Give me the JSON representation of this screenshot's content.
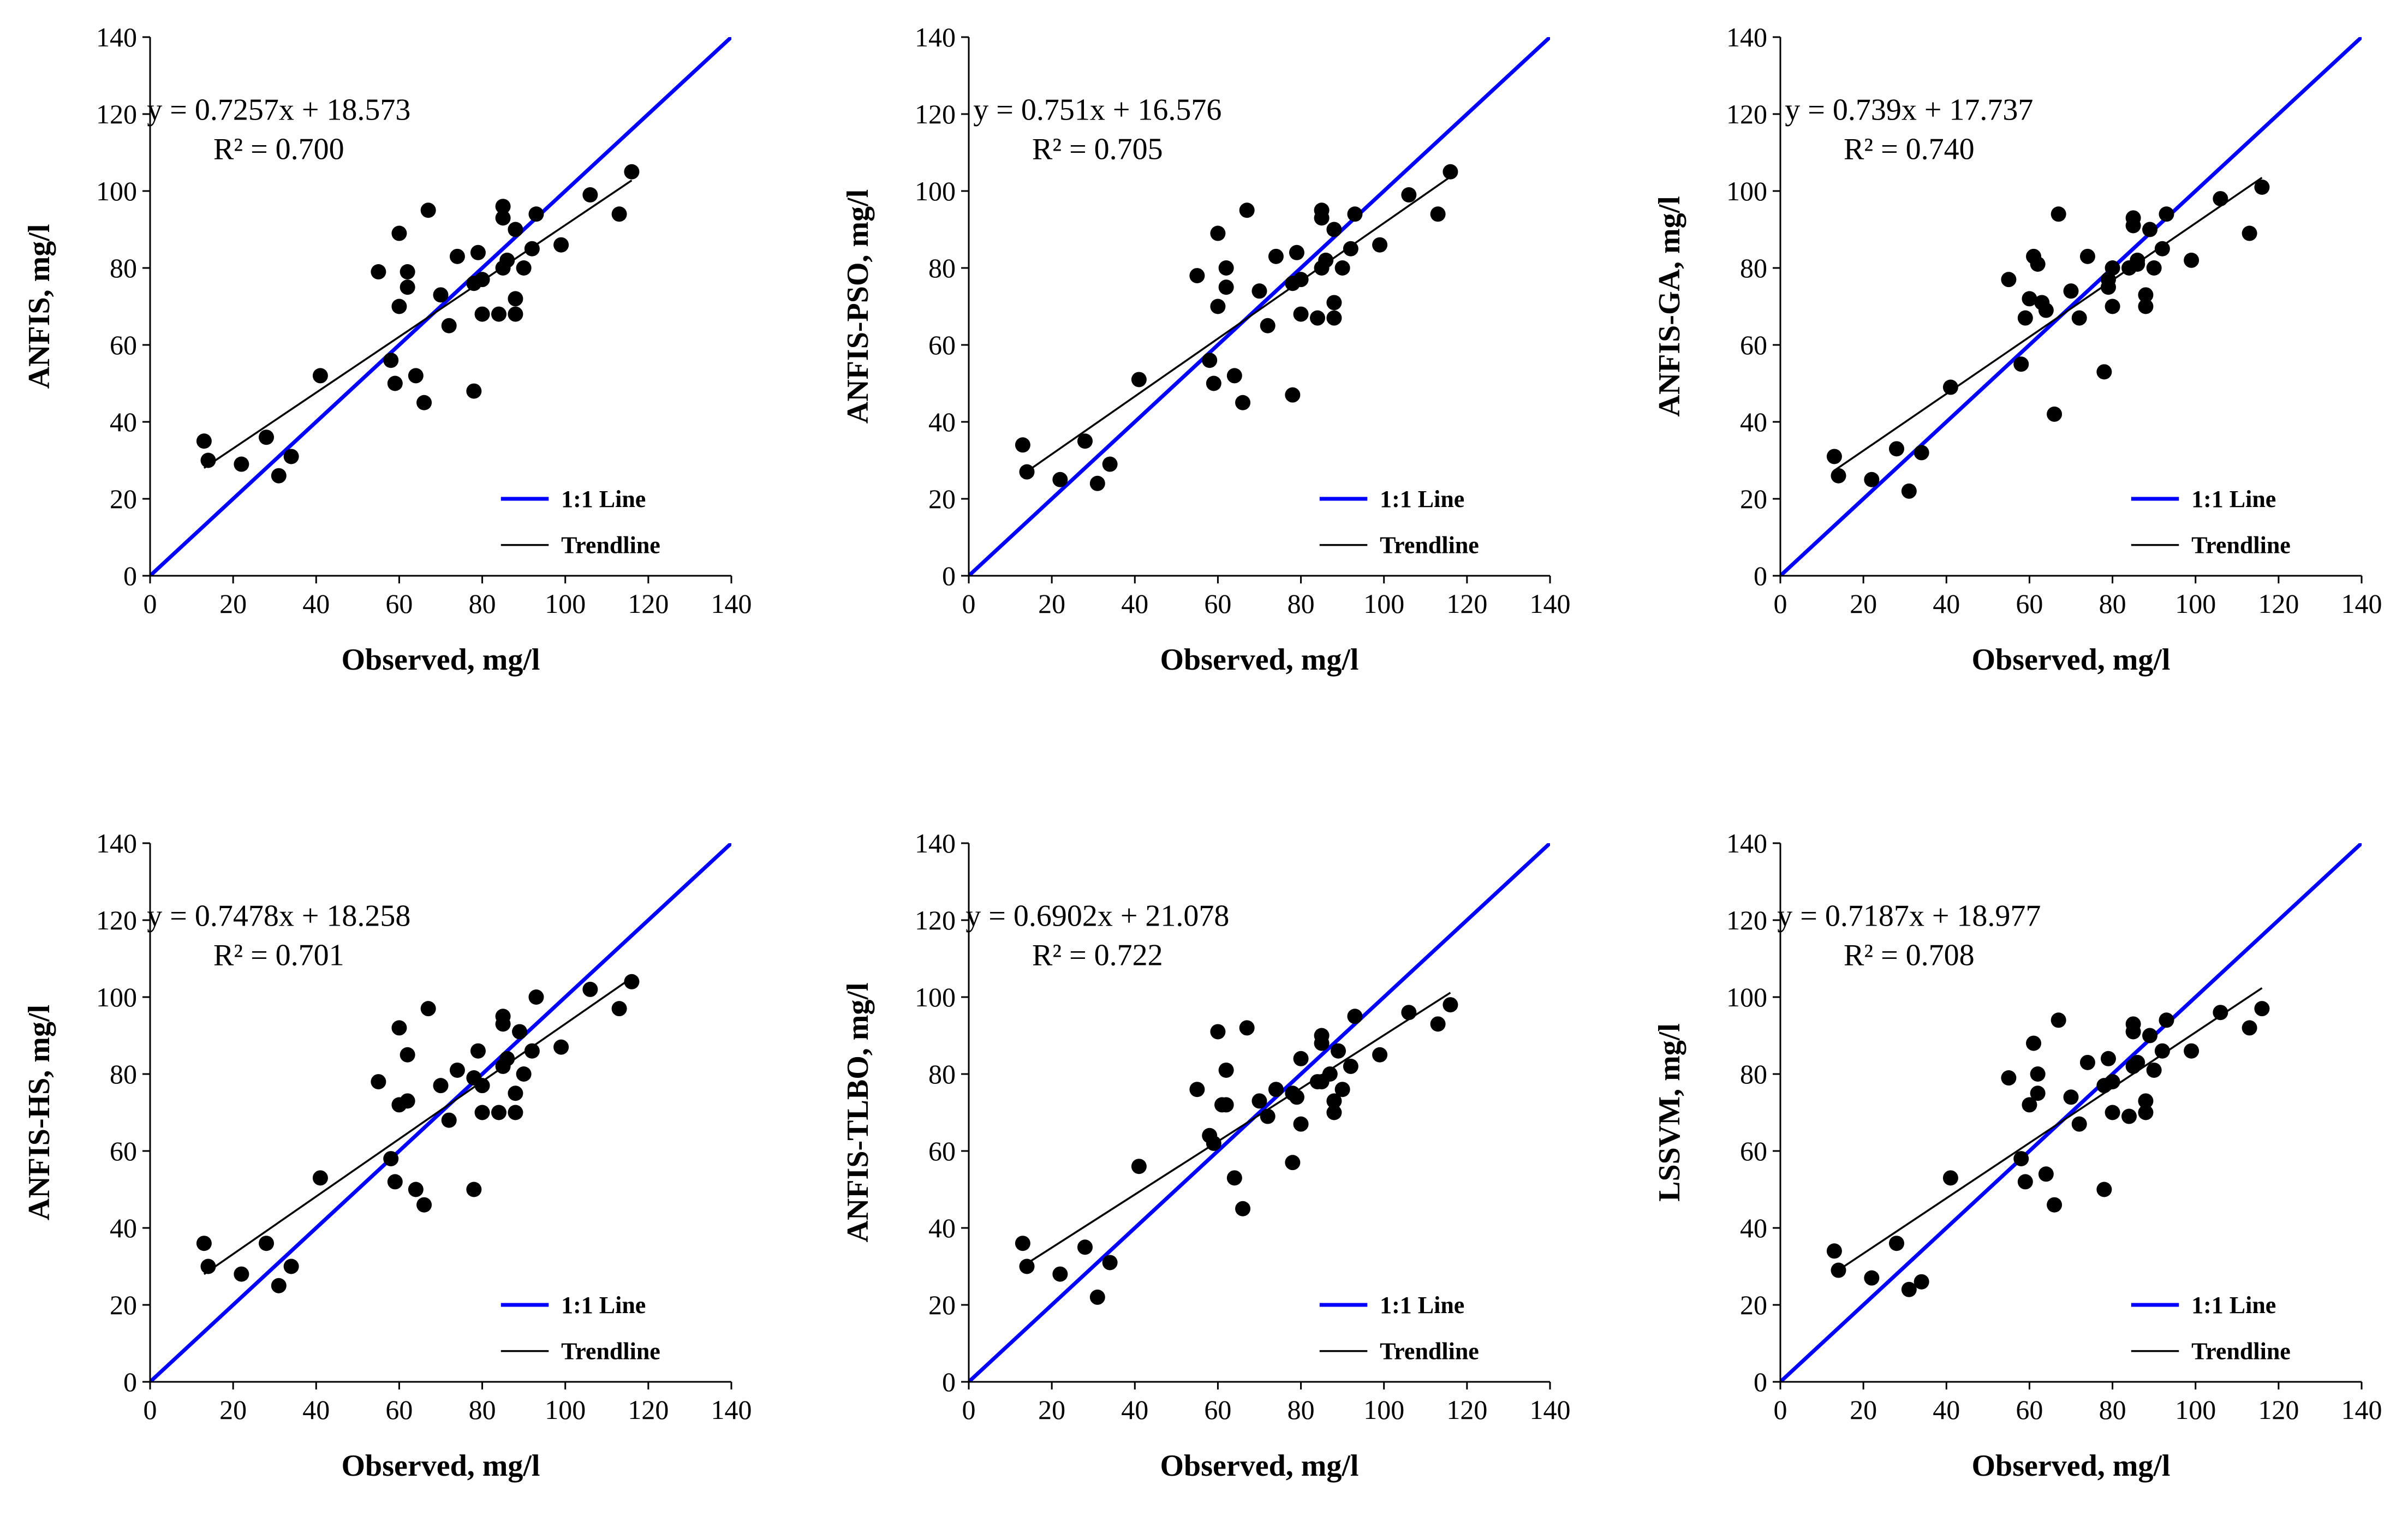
{
  "colors": {
    "one_to_one": "#0000FF",
    "trendline": "#000000",
    "points": "#000000",
    "axes": "#000000"
  },
  "chart_data": [
    {
      "type": "scatter",
      "panel": "top-left",
      "xlabel": "Observed, mg/l",
      "ylabel": "ANFIS, mg/l",
      "xlim": [
        0,
        140
      ],
      "ylim": [
        0,
        140
      ],
      "xticks": [
        "0",
        "20",
        "40",
        "60",
        "80",
        "100",
        "120",
        "140"
      ],
      "yticks": [
        "0",
        "20",
        "40",
        "60",
        "80",
        "100",
        "120",
        "140"
      ],
      "equation": "y = 0.7257x + 18.573",
      "r2": "R² = 0.700",
      "trend": {
        "slope": 0.7257,
        "intercept": 18.573,
        "x_range": [
          13,
          116
        ]
      },
      "legend": [
        {
          "label": "1:1 Line"
        },
        {
          "label": "Trendline"
        }
      ],
      "points": [
        [
          13,
          35
        ],
        [
          14,
          30
        ],
        [
          22,
          29
        ],
        [
          28,
          36
        ],
        [
          31,
          26
        ],
        [
          34,
          31
        ],
        [
          41,
          52
        ],
        [
          55,
          79
        ],
        [
          58,
          56
        ],
        [
          59,
          50
        ],
        [
          60,
          89
        ],
        [
          60,
          70
        ],
        [
          62,
          79
        ],
        [
          62,
          75
        ],
        [
          64,
          52
        ],
        [
          66,
          45
        ],
        [
          67,
          95
        ],
        [
          70,
          73
        ],
        [
          72,
          65
        ],
        [
          74,
          83
        ],
        [
          78,
          48
        ],
        [
          78,
          76
        ],
        [
          79,
          84
        ],
        [
          80,
          68
        ],
        [
          80,
          77
        ],
        [
          84,
          68
        ],
        [
          85,
          96
        ],
        [
          85,
          93
        ],
        [
          85,
          80
        ],
        [
          86,
          82
        ],
        [
          88,
          68
        ],
        [
          88,
          72
        ],
        [
          88,
          90
        ],
        [
          90,
          80
        ],
        [
          92,
          85
        ],
        [
          93,
          94
        ],
        [
          99,
          86
        ],
        [
          106,
          99
        ],
        [
          113,
          94
        ],
        [
          116,
          105
        ]
      ]
    },
    {
      "type": "scatter",
      "panel": "top-middle",
      "xlabel": "Observed, mg/l",
      "ylabel": "ANFIS-PSO, mg/l",
      "xlim": [
        0,
        140
      ],
      "ylim": [
        0,
        140
      ],
      "xticks": [
        "0",
        "20",
        "40",
        "60",
        "80",
        "100",
        "120",
        "140"
      ],
      "yticks": [
        "0",
        "20",
        "40",
        "60",
        "80",
        "100",
        "120",
        "140"
      ],
      "equation": "y = 0.751x + 16.576",
      "r2": "R² = 0.705",
      "trend": {
        "slope": 0.751,
        "intercept": 16.576,
        "x_range": [
          13,
          116
        ]
      },
      "legend": [
        {
          "label": "1:1 Line"
        },
        {
          "label": "Trendline"
        }
      ],
      "points": [
        [
          13,
          34
        ],
        [
          14,
          27
        ],
        [
          22,
          25
        ],
        [
          28,
          35
        ],
        [
          31,
          24
        ],
        [
          34,
          29
        ],
        [
          41,
          51
        ],
        [
          55,
          78
        ],
        [
          58,
          56
        ],
        [
          59,
          50
        ],
        [
          60,
          89
        ],
        [
          60,
          70
        ],
        [
          62,
          80
        ],
        [
          62,
          75
        ],
        [
          64,
          52
        ],
        [
          66,
          45
        ],
        [
          67,
          95
        ],
        [
          70,
          74
        ],
        [
          72,
          65
        ],
        [
          74,
          83
        ],
        [
          78,
          47
        ],
        [
          78,
          76
        ],
        [
          79,
          84
        ],
        [
          80,
          68
        ],
        [
          80,
          77
        ],
        [
          84,
          67
        ],
        [
          85,
          95
        ],
        [
          85,
          93
        ],
        [
          85,
          80
        ],
        [
          86,
          82
        ],
        [
          88,
          67
        ],
        [
          88,
          71
        ],
        [
          88,
          90
        ],
        [
          90,
          80
        ],
        [
          92,
          85
        ],
        [
          93,
          94
        ],
        [
          99,
          86
        ],
        [
          106,
          99
        ],
        [
          113,
          94
        ],
        [
          116,
          105
        ]
      ]
    },
    {
      "type": "scatter",
      "panel": "top-right",
      "xlabel": "Observed, mg/l",
      "ylabel": "ANFIS-GA, mg/l",
      "xlim": [
        0,
        140
      ],
      "ylim": [
        0,
        140
      ],
      "xticks": [
        "0",
        "20",
        "40",
        "60",
        "80",
        "100",
        "120",
        "140"
      ],
      "yticks": [
        "0",
        "20",
        "40",
        "60",
        "80",
        "100",
        "120",
        "140"
      ],
      "equation": "y = 0.739x + 17.737",
      "r2": "R² = 0.740",
      "trend": {
        "slope": 0.739,
        "intercept": 17.737,
        "x_range": [
          13,
          116
        ]
      },
      "legend": [
        {
          "label": "1:1 Line"
        },
        {
          "label": "Trendline"
        }
      ],
      "points": [
        [
          13,
          31
        ],
        [
          14,
          26
        ],
        [
          22,
          25
        ],
        [
          28,
          33
        ],
        [
          31,
          22
        ],
        [
          34,
          32
        ],
        [
          41,
          49
        ],
        [
          55,
          77
        ],
        [
          58,
          55
        ],
        [
          59,
          67
        ],
        [
          60,
          72
        ],
        [
          61,
          83
        ],
        [
          62,
          81
        ],
        [
          63,
          71
        ],
        [
          64,
          69
        ],
        [
          66,
          42
        ],
        [
          67,
          94
        ],
        [
          70,
          74
        ],
        [
          72,
          67
        ],
        [
          74,
          83
        ],
        [
          78,
          53
        ],
        [
          79,
          77
        ],
        [
          79,
          75
        ],
        [
          80,
          70
        ],
        [
          80,
          80
        ],
        [
          84,
          80
        ],
        [
          85,
          93
        ],
        [
          85,
          91
        ],
        [
          86,
          82
        ],
        [
          86,
          81
        ],
        [
          88,
          73
        ],
        [
          88,
          70
        ],
        [
          89,
          90
        ],
        [
          90,
          80
        ],
        [
          92,
          85
        ],
        [
          93,
          94
        ],
        [
          99,
          82
        ],
        [
          106,
          98
        ],
        [
          113,
          89
        ],
        [
          116,
          101
        ]
      ]
    },
    {
      "type": "scatter",
      "panel": "bottom-left",
      "xlabel": "Observed, mg/l",
      "ylabel": "ANFIS-HS, mg/l",
      "xlim": [
        0,
        140
      ],
      "ylim": [
        0,
        140
      ],
      "xticks": [
        "0",
        "20",
        "40",
        "60",
        "80",
        "100",
        "120",
        "140"
      ],
      "yticks": [
        "0",
        "20",
        "40",
        "60",
        "80",
        "100",
        "120",
        "140"
      ],
      "equation": "y = 0.7478x + 18.258",
      "r2": "R² = 0.701",
      "trend": {
        "slope": 0.7478,
        "intercept": 18.258,
        "x_range": [
          13,
          116
        ]
      },
      "legend": [
        {
          "label": "1:1 Line"
        },
        {
          "label": "Trendline"
        }
      ],
      "points": [
        [
          13,
          36
        ],
        [
          14,
          30
        ],
        [
          22,
          28
        ],
        [
          28,
          36
        ],
        [
          31,
          25
        ],
        [
          34,
          30
        ],
        [
          41,
          53
        ],
        [
          55,
          78
        ],
        [
          58,
          58
        ],
        [
          59,
          52
        ],
        [
          60,
          92
        ],
        [
          60,
          72
        ],
        [
          62,
          85
        ],
        [
          62,
          73
        ],
        [
          64,
          50
        ],
        [
          66,
          46
        ],
        [
          67,
          97
        ],
        [
          70,
          77
        ],
        [
          72,
          68
        ],
        [
          74,
          81
        ],
        [
          78,
          50
        ],
        [
          78,
          79
        ],
        [
          79,
          86
        ],
        [
          80,
          70
        ],
        [
          80,
          77
        ],
        [
          84,
          70
        ],
        [
          85,
          95
        ],
        [
          85,
          93
        ],
        [
          85,
          82
        ],
        [
          86,
          84
        ],
        [
          88,
          70
        ],
        [
          88,
          75
        ],
        [
          89,
          91
        ],
        [
          90,
          80
        ],
        [
          92,
          86
        ],
        [
          93,
          100
        ],
        [
          99,
          87
        ],
        [
          106,
          102
        ],
        [
          113,
          97
        ],
        [
          116,
          104
        ]
      ]
    },
    {
      "type": "scatter",
      "panel": "bottom-middle",
      "xlabel": "Observed, mg/l",
      "ylabel": "ANFIS-TLBO, mg/l",
      "xlim": [
        0,
        140
      ],
      "ylim": [
        0,
        140
      ],
      "xticks": [
        "0",
        "20",
        "40",
        "60",
        "80",
        "100",
        "120",
        "140"
      ],
      "yticks": [
        "0",
        "20",
        "40",
        "60",
        "80",
        "100",
        "120",
        "140"
      ],
      "equation": "y = 0.6902x + 21.078",
      "r2": "R² = 0.722",
      "trend": {
        "slope": 0.6902,
        "intercept": 21.078,
        "x_range": [
          13,
          116
        ]
      },
      "legend": [
        {
          "label": "1:1 Line"
        },
        {
          "label": "Trendline"
        }
      ],
      "points": [
        [
          13,
          36
        ],
        [
          14,
          30
        ],
        [
          22,
          28
        ],
        [
          28,
          35
        ],
        [
          31,
          22
        ],
        [
          34,
          31
        ],
        [
          41,
          56
        ],
        [
          55,
          76
        ],
        [
          58,
          64
        ],
        [
          59,
          62
        ],
        [
          60,
          91
        ],
        [
          61,
          72
        ],
        [
          62,
          81
        ],
        [
          62,
          72
        ],
        [
          64,
          53
        ],
        [
          66,
          45
        ],
        [
          67,
          92
        ],
        [
          70,
          73
        ],
        [
          72,
          69
        ],
        [
          74,
          76
        ],
        [
          78,
          57
        ],
        [
          78,
          75
        ],
        [
          79,
          74
        ],
        [
          80,
          67
        ],
        [
          80,
          84
        ],
        [
          84,
          78
        ],
        [
          85,
          90
        ],
        [
          85,
          88
        ],
        [
          85,
          78
        ],
        [
          87,
          80
        ],
        [
          88,
          70
        ],
        [
          88,
          73
        ],
        [
          89,
          86
        ],
        [
          90,
          76
        ],
        [
          92,
          82
        ],
        [
          93,
          95
        ],
        [
          99,
          85
        ],
        [
          106,
          96
        ],
        [
          113,
          93
        ],
        [
          116,
          98
        ]
      ]
    },
    {
      "type": "scatter",
      "panel": "bottom-right",
      "xlabel": "Observed, mg/l",
      "ylabel": "LSSVM, mg/l",
      "xlim": [
        0,
        140
      ],
      "ylim": [
        0,
        140
      ],
      "xticks": [
        "0",
        "20",
        "40",
        "60",
        "80",
        "100",
        "120",
        "140"
      ],
      "yticks": [
        "0",
        "20",
        "40",
        "60",
        "80",
        "100",
        "120",
        "140"
      ],
      "equation": "y = 0.7187x + 18.977",
      "r2": "R² = 0.708",
      "trend": {
        "slope": 0.7187,
        "intercept": 18.977,
        "x_range": [
          13,
          116
        ]
      },
      "legend": [
        {
          "label": "1:1 Line"
        },
        {
          "label": "Trendline"
        }
      ],
      "points": [
        [
          13,
          34
        ],
        [
          14,
          29
        ],
        [
          22,
          27
        ],
        [
          28,
          36
        ],
        [
          31,
          24
        ],
        [
          34,
          26
        ],
        [
          41,
          53
        ],
        [
          55,
          79
        ],
        [
          58,
          58
        ],
        [
          59,
          52
        ],
        [
          60,
          72
        ],
        [
          61,
          88
        ],
        [
          62,
          80
        ],
        [
          62,
          75
        ],
        [
          64,
          54
        ],
        [
          66,
          46
        ],
        [
          67,
          94
        ],
        [
          70,
          74
        ],
        [
          72,
          67
        ],
        [
          74,
          83
        ],
        [
          78,
          50
        ],
        [
          78,
          77
        ],
        [
          79,
          84
        ],
        [
          80,
          70
        ],
        [
          80,
          78
        ],
        [
          84,
          69
        ],
        [
          85,
          93
        ],
        [
          85,
          91
        ],
        [
          85,
          82
        ],
        [
          86,
          83
        ],
        [
          88,
          70
        ],
        [
          88,
          73
        ],
        [
          89,
          90
        ],
        [
          90,
          81
        ],
        [
          92,
          86
        ],
        [
          93,
          94
        ],
        [
          99,
          86
        ],
        [
          106,
          96
        ],
        [
          113,
          92
        ],
        [
          116,
          97
        ]
      ]
    }
  ]
}
